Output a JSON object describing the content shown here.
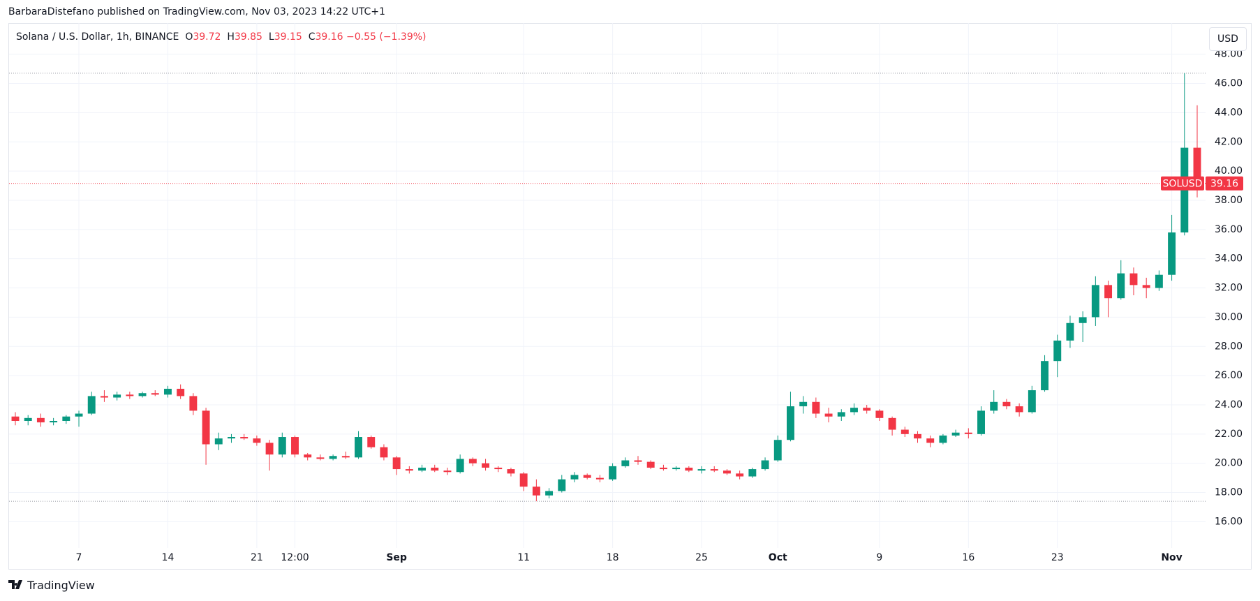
{
  "header": {
    "publisher": "BarbaraDistefano published on TradingView.com, Nov 03, 2023 14:22 UTC+1"
  },
  "footer": {
    "brand": "TradingView"
  },
  "chart_data": {
    "type": "candlestick",
    "title": "Solana / U.S. Dollar, 1h, BINANCE",
    "legend": {
      "open_label": "O",
      "open": 39.72,
      "high_label": "H",
      "high": 39.85,
      "low_label": "L",
      "low": 39.15,
      "close_label": "C",
      "close": 39.16,
      "change": "−0.55 (−1.39%)"
    },
    "currency": "USD",
    "symbol": "SOLUSD",
    "last_price": 39.16,
    "up_color": "#089981",
    "down_color": "#f23645",
    "grid": true,
    "categories": [
      null,
      null,
      null,
      null,
      null,
      "7",
      null,
      null,
      null,
      null,
      null,
      null,
      "14",
      null,
      null,
      null,
      null,
      null,
      null,
      "21",
      null,
      null,
      "12:00",
      null,
      null,
      null,
      null,
      null,
      null,
      null,
      "Sep",
      null,
      null,
      null,
      null,
      null,
      null,
      null,
      null,
      null,
      "11",
      null,
      null,
      null,
      null,
      null,
      null,
      "18",
      null,
      null,
      null,
      null,
      null,
      null,
      "25",
      null,
      null,
      null,
      null,
      null,
      "Oct",
      null,
      null,
      null,
      null,
      null,
      null,
      null,
      "9",
      null,
      null,
      null,
      null,
      null,
      null,
      "16",
      null,
      null,
      null,
      null,
      null,
      null,
      "23",
      null,
      null,
      null,
      null,
      null,
      null,
      null,
      null,
      "Nov",
      null,
      null
    ],
    "open": [
      23.2,
      22.9,
      23.1,
      22.8,
      22.9,
      23.2,
      23.4,
      24.6,
      24.5,
      24.7,
      24.6,
      24.8,
      24.7,
      25.1,
      24.6,
      23.6,
      21.3,
      21.7,
      21.8,
      21.7,
      21.4,
      20.6,
      21.8,
      20.6,
      20.4,
      20.3,
      20.5,
      20.4,
      21.8,
      21.1,
      20.4,
      19.6,
      19.5,
      19.7,
      19.5,
      19.4,
      20.3,
      20.0,
      19.7,
      19.6,
      19.3,
      18.4,
      17.8,
      18.1,
      18.9,
      19.2,
      19.0,
      18.9,
      19.8,
      20.2,
      20.1,
      19.7,
      19.6,
      19.7,
      19.5,
      19.6,
      19.5,
      19.3,
      19.1,
      19.6,
      20.2,
      21.6,
      23.9,
      24.2,
      23.4,
      23.2,
      23.5,
      23.8,
      23.6,
      23.1,
      22.3,
      22.0,
      21.7,
      21.4,
      21.9,
      22.1,
      22.0,
      23.6,
      24.2,
      23.9,
      23.5,
      25.0,
      27.0,
      28.4,
      29.6,
      30.0,
      32.2,
      31.3,
      33.0,
      32.2,
      32.0,
      32.9,
      35.8,
      41.6
    ],
    "high": [
      23.5,
      23.3,
      23.4,
      23.1,
      23.3,
      23.6,
      24.9,
      25.0,
      24.9,
      24.9,
      24.9,
      25.0,
      25.3,
      25.4,
      24.8,
      23.8,
      22.1,
      22.0,
      22.0,
      21.9,
      21.6,
      22.1,
      21.9,
      20.7,
      20.6,
      20.6,
      20.8,
      22.2,
      21.9,
      21.3,
      20.5,
      19.8,
      19.9,
      19.9,
      19.7,
      20.6,
      20.4,
      20.3,
      19.8,
      19.7,
      19.4,
      18.9,
      18.3,
      19.2,
      19.4,
      19.3,
      19.2,
      20.0,
      20.4,
      20.5,
      20.2,
      19.9,
      19.8,
      19.8,
      19.8,
      19.8,
      19.6,
      19.5,
      19.7,
      20.4,
      21.9,
      24.9,
      24.6,
      24.5,
      23.8,
      23.7,
      24.1,
      24.0,
      23.7,
      23.2,
      22.5,
      22.2,
      21.9,
      22.0,
      22.3,
      22.4,
      23.9,
      25.0,
      24.4,
      24.1,
      25.3,
      27.4,
      28.8,
      30.1,
      30.4,
      32.8,
      32.5,
      33.9,
      33.4,
      32.7,
      33.2,
      37.0,
      46.7,
      44.5
    ],
    "low": [
      22.6,
      22.6,
      22.5,
      22.6,
      22.7,
      22.5,
      23.3,
      24.2,
      24.3,
      24.4,
      24.5,
      24.6,
      24.5,
      24.4,
      23.3,
      19.9,
      20.9,
      21.4,
      21.6,
      21.2,
      19.5,
      20.4,
      20.4,
      20.2,
      20.2,
      20.2,
      20.3,
      20.3,
      21.0,
      20.2,
      19.2,
      19.3,
      19.4,
      19.4,
      19.2,
      19.3,
      19.8,
      19.5,
      19.4,
      19.1,
      18.1,
      17.4,
      17.6,
      18.0,
      18.7,
      18.9,
      18.7,
      18.8,
      19.7,
      19.9,
      19.6,
      19.5,
      19.5,
      19.4,
      19.3,
      19.4,
      19.2,
      18.9,
      19.0,
      19.5,
      20.1,
      21.5,
      23.4,
      23.1,
      22.8,
      22.9,
      23.3,
      23.4,
      22.9,
      21.9,
      21.8,
      21.4,
      21.1,
      21.3,
      21.8,
      21.7,
      21.9,
      23.4,
      23.7,
      23.2,
      23.4,
      24.9,
      25.9,
      27.9,
      28.3,
      29.4,
      30.0,
      31.2,
      31.5,
      31.3,
      31.8,
      32.5,
      35.6,
      38.2
    ],
    "close": [
      22.9,
      23.1,
      22.8,
      22.9,
      23.2,
      23.4,
      24.6,
      24.5,
      24.7,
      24.6,
      24.8,
      24.7,
      25.1,
      24.6,
      23.6,
      21.3,
      21.7,
      21.8,
      21.7,
      21.4,
      20.6,
      21.8,
      20.6,
      20.4,
      20.3,
      20.5,
      20.4,
      21.8,
      21.1,
      20.4,
      19.6,
      19.5,
      19.7,
      19.5,
      19.4,
      20.3,
      20.0,
      19.7,
      19.6,
      19.3,
      18.4,
      17.8,
      18.1,
      18.9,
      19.2,
      19.0,
      18.9,
      19.8,
      20.2,
      20.1,
      19.7,
      19.6,
      19.7,
      19.5,
      19.6,
      19.5,
      19.3,
      19.1,
      19.6,
      20.2,
      21.6,
      23.9,
      24.2,
      23.4,
      23.2,
      23.5,
      23.8,
      23.6,
      23.1,
      22.3,
      22.0,
      21.7,
      21.4,
      21.9,
      22.1,
      22.0,
      23.6,
      24.2,
      23.9,
      23.5,
      25.0,
      27.0,
      28.4,
      29.6,
      30.0,
      32.2,
      31.3,
      33.0,
      32.2,
      32.0,
      32.9,
      35.8,
      41.6,
      39.16
    ],
    "ylim": [
      14.3,
      49.8
    ],
    "yticks": [
      {
        "value": 16,
        "label": "16.00"
      },
      {
        "value": 18,
        "label": "18.00"
      },
      {
        "value": 20,
        "label": "20.00"
      },
      {
        "value": 22,
        "label": "22.00"
      },
      {
        "value": 24,
        "label": "24.00"
      },
      {
        "value": 26,
        "label": "26.00"
      },
      {
        "value": 28,
        "label": "28.00"
      },
      {
        "value": 30,
        "label": "30.00"
      },
      {
        "value": 32,
        "label": "32.00"
      },
      {
        "value": 34,
        "label": "34.00"
      },
      {
        "value": 36,
        "label": "36.00"
      },
      {
        "value": 38,
        "label": "38.00"
      },
      {
        "value": 40,
        "label": "40.00"
      },
      {
        "value": 42,
        "label": "42.00"
      },
      {
        "value": 44,
        "label": "44.00"
      },
      {
        "value": 46,
        "label": "46.00"
      },
      {
        "value": 48,
        "label": "48.00"
      }
    ]
  }
}
